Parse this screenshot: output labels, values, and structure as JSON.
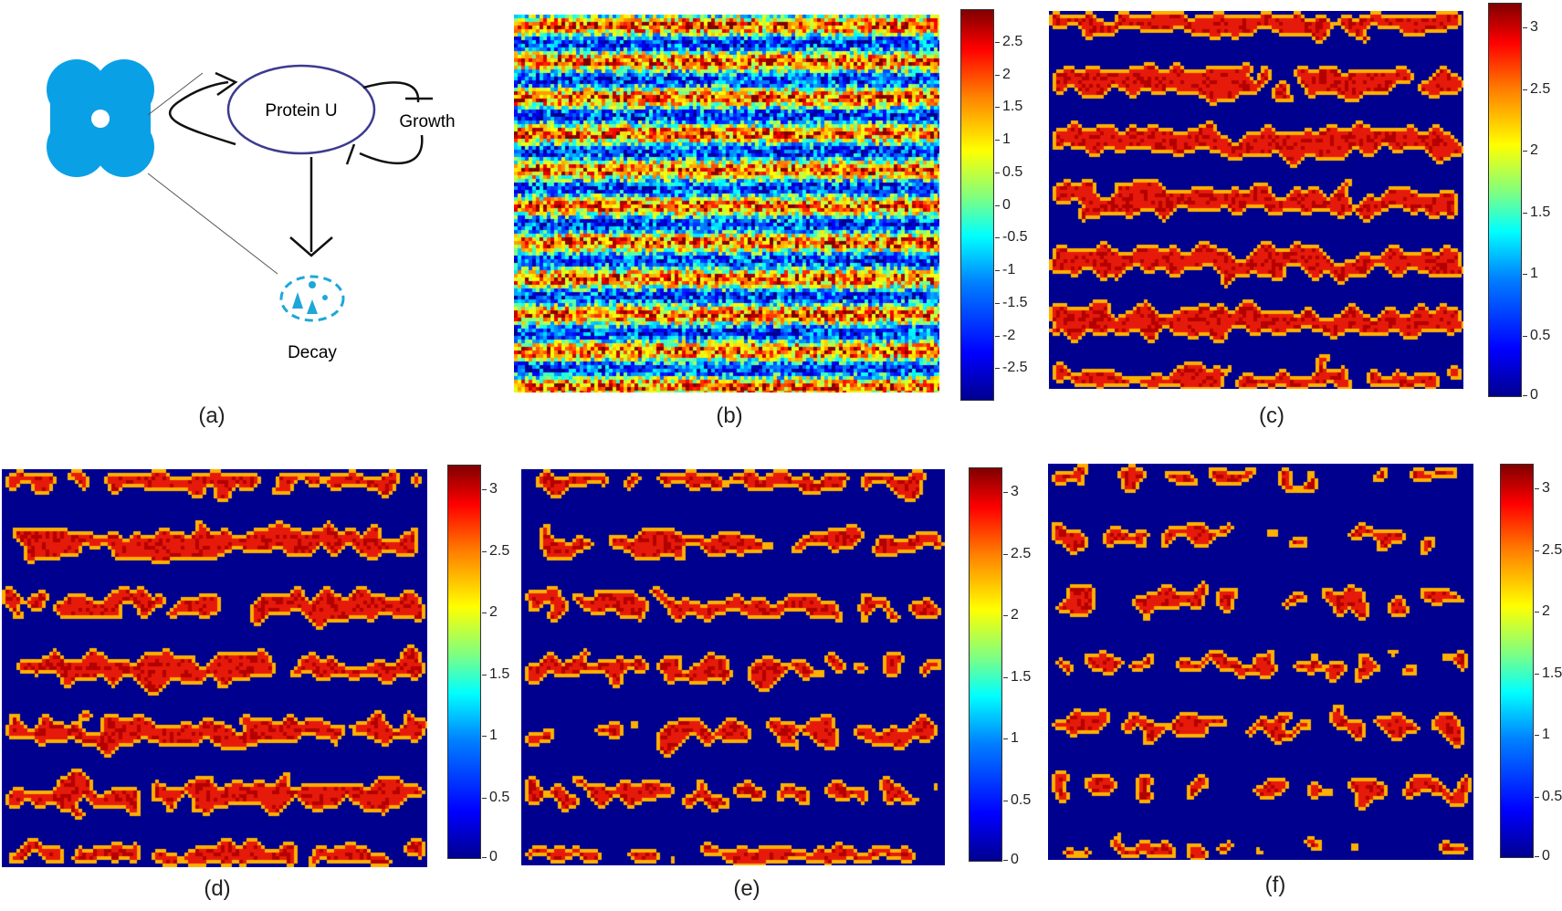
{
  "schematic": {
    "protein_label": "Protein U",
    "growth_label": "Growth",
    "decay_label": "Decay"
  },
  "panels": [
    {
      "id": "a",
      "label": "(a)"
    },
    {
      "id": "b",
      "label": "(b)",
      "colorbar": {
        "ticks": [
          "2.5",
          "2",
          "1.5",
          "1",
          "0.5",
          "0",
          "-0.5",
          "-1",
          "-1.5",
          "-2",
          "-2.5"
        ]
      }
    },
    {
      "id": "c",
      "label": "(c)",
      "colorbar": {
        "ticks": [
          "3",
          "2.5",
          "2",
          "1.5",
          "1",
          "0.5",
          "0"
        ]
      }
    },
    {
      "id": "d",
      "label": "(d)",
      "colorbar": {
        "ticks": [
          "3",
          "2.5",
          "2",
          "1.5",
          "1",
          "0.5",
          "0"
        ]
      }
    },
    {
      "id": "e",
      "label": "(e)",
      "colorbar": {
        "ticks": [
          "3",
          "2.5",
          "2",
          "1.5",
          "1",
          "0.5",
          "0"
        ]
      }
    },
    {
      "id": "f",
      "label": "(f)",
      "colorbar": {
        "ticks": [
          "3",
          "2.5",
          "2",
          "1.5",
          "1",
          "0.5",
          "0"
        ]
      }
    }
  ],
  "colors": {
    "cell_blue": "#0aa0e6",
    "field_blue": "#00008f",
    "pattern_red": "#e61a0a",
    "pattern_edge": "#ffcc00"
  }
}
